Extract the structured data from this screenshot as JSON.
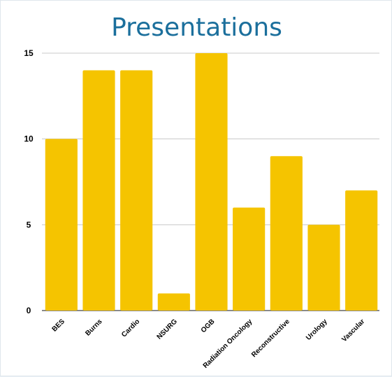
{
  "chart_data": {
    "type": "bar",
    "title": "Presentations",
    "xlabel": "",
    "ylabel": "",
    "categories": [
      "BES",
      "Burns",
      "Cardio",
      "NSURG",
      "OGB",
      "Radiation Oncology",
      "Reconstructive",
      "Urology",
      "Vascular"
    ],
    "values": [
      10,
      14,
      14,
      1,
      15,
      6,
      9,
      5,
      7
    ],
    "ylim": [
      0,
      15
    ],
    "yticks": [
      "0",
      "5",
      "10",
      "15"
    ],
    "grid": true,
    "legend": "none",
    "bar_color": "#f5c400",
    "title_color": "#1b6f9c"
  }
}
